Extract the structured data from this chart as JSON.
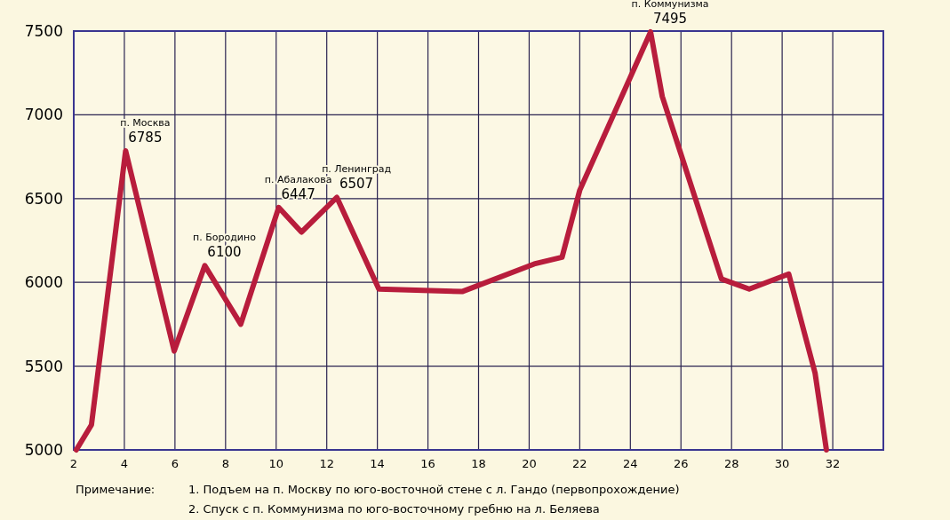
{
  "chart_data": {
    "type": "line",
    "x": [
      2.1,
      2.7,
      4.05,
      5.97,
      7.18,
      8.6,
      10.1,
      11.0,
      12.4,
      14.06,
      17.35,
      20.2,
      21.3,
      22.0,
      24.8,
      25.26,
      27.6,
      28.7,
      30.26,
      31.3,
      31.75
    ],
    "series": [
      {
        "color": "#b81d3c",
        "values": [
          5000,
          5150,
          6785,
          5590,
          6100,
          5750,
          6447,
          6300,
          6507,
          5960,
          5945,
          6110,
          6150,
          6550,
          7495,
          7110,
          6020,
          5960,
          6050,
          5460,
          5000
        ]
      }
    ],
    "xlim": [
      2,
      34
    ],
    "xticks": [
      2,
      4,
      6,
      8,
      10,
      12,
      14,
      16,
      18,
      20,
      22,
      24,
      26,
      28,
      30,
      32
    ],
    "ylim": [
      5000,
      7500
    ],
    "yticks": [
      5000,
      5500,
      6000,
      6500,
      7000,
      7500
    ],
    "grid": true,
    "line_style": "solid",
    "marker": "none",
    "annotations": [
      {
        "text": "п. Москва\n6785",
        "x": 4.05,
        "y": 6785
      },
      {
        "text": "п. Бородино\n6100",
        "x": 7.18,
        "y": 6100
      },
      {
        "text": "п. Абалакова\n6447",
        "x": 10.1,
        "y": 6447
      },
      {
        "text": "п. Ленинград\n6507",
        "x": 12.4,
        "y": 6507
      },
      {
        "text": "п. Коммунизма\n7495",
        "x": 24.8,
        "y": 7495
      },
      "Примечание:",
      "1. Подъем на п. Москву по юго-восточной стене с л. Гандо (первопрохождение)",
      "2. Спуск с п. Коммунизма по юго-восточному гребню на л. Беляева"
    ]
  }
}
